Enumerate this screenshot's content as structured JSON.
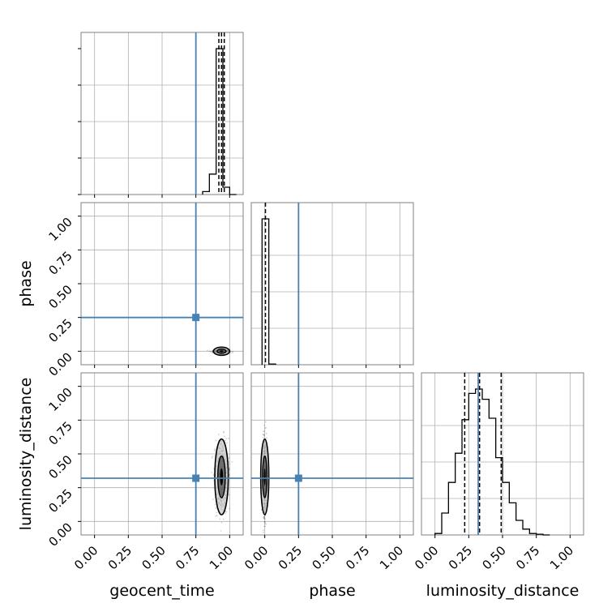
{
  "chart_data": {
    "type": "corner",
    "parameters": [
      "geocent_time",
      "phase",
      "luminosity_distance"
    ],
    "axis_labels": {
      "bottom": [
        "geocent_time",
        "phase",
        "luminosity_distance"
      ],
      "left": [
        "phase",
        "luminosity_distance"
      ]
    },
    "tick_values": [
      0.0,
      0.25,
      0.5,
      0.75,
      1.0
    ],
    "tick_labels": [
      "0.00",
      "0.25",
      "0.50",
      "0.75",
      "1.00"
    ],
    "xlim": [
      -0.1,
      1.1
    ],
    "ylim": [
      -0.1,
      1.1
    ],
    "grid": true,
    "truths": {
      "geocent_time": 0.75,
      "phase": 0.25,
      "luminosity_distance": 0.32
    },
    "colors": {
      "truth": "#4682b4",
      "histogram": "#000000",
      "quantile": "#000000",
      "grid": "#b0b0b0",
      "frame": "#808080",
      "samples": "#000000"
    },
    "histograms": [
      {
        "parameter": "geocent_time",
        "bin_edges": [
          0.8,
          0.85,
          0.9,
          0.95,
          1.0,
          1.05
        ],
        "counts": [
          0.02,
          0.14,
          1.0,
          0.05,
          0.0
        ],
        "quantiles": [
          0.92,
          0.94,
          0.96
        ]
      },
      {
        "parameter": "phase",
        "bin_edges": [
          -0.02,
          0.03,
          0.08
        ],
        "counts": [
          1.0,
          0.005
        ],
        "quantiles": [
          0.005
        ]
      },
      {
        "parameter": "luminosity_distance",
        "bin_edges": [
          0.0,
          0.05,
          0.1,
          0.15,
          0.2,
          0.25,
          0.3,
          0.35,
          0.4,
          0.45,
          0.5,
          0.55,
          0.6,
          0.65,
          0.7,
          0.75,
          0.8,
          0.85
        ],
        "counts": [
          0.01,
          0.15,
          0.36,
          0.56,
          0.79,
          0.97,
          1.0,
          0.93,
          0.8,
          0.53,
          0.36,
          0.22,
          0.1,
          0.04,
          0.01,
          0.005,
          0.0
        ],
        "quantiles": [
          0.22,
          0.33,
          0.49
        ]
      }
    ],
    "joint_distributions": [
      {
        "x": "geocent_time",
        "y": "phase",
        "center": [
          0.94,
          0.0
        ],
        "spread": [
          0.03,
          0.005
        ]
      },
      {
        "x": "geocent_time",
        "y": "luminosity_distance",
        "center": [
          0.94,
          0.33
        ],
        "spread": [
          0.025,
          0.14
        ]
      },
      {
        "x": "phase",
        "y": "luminosity_distance",
        "center": [
          0.0,
          0.33
        ],
        "spread": [
          0.008,
          0.14
        ]
      }
    ]
  }
}
